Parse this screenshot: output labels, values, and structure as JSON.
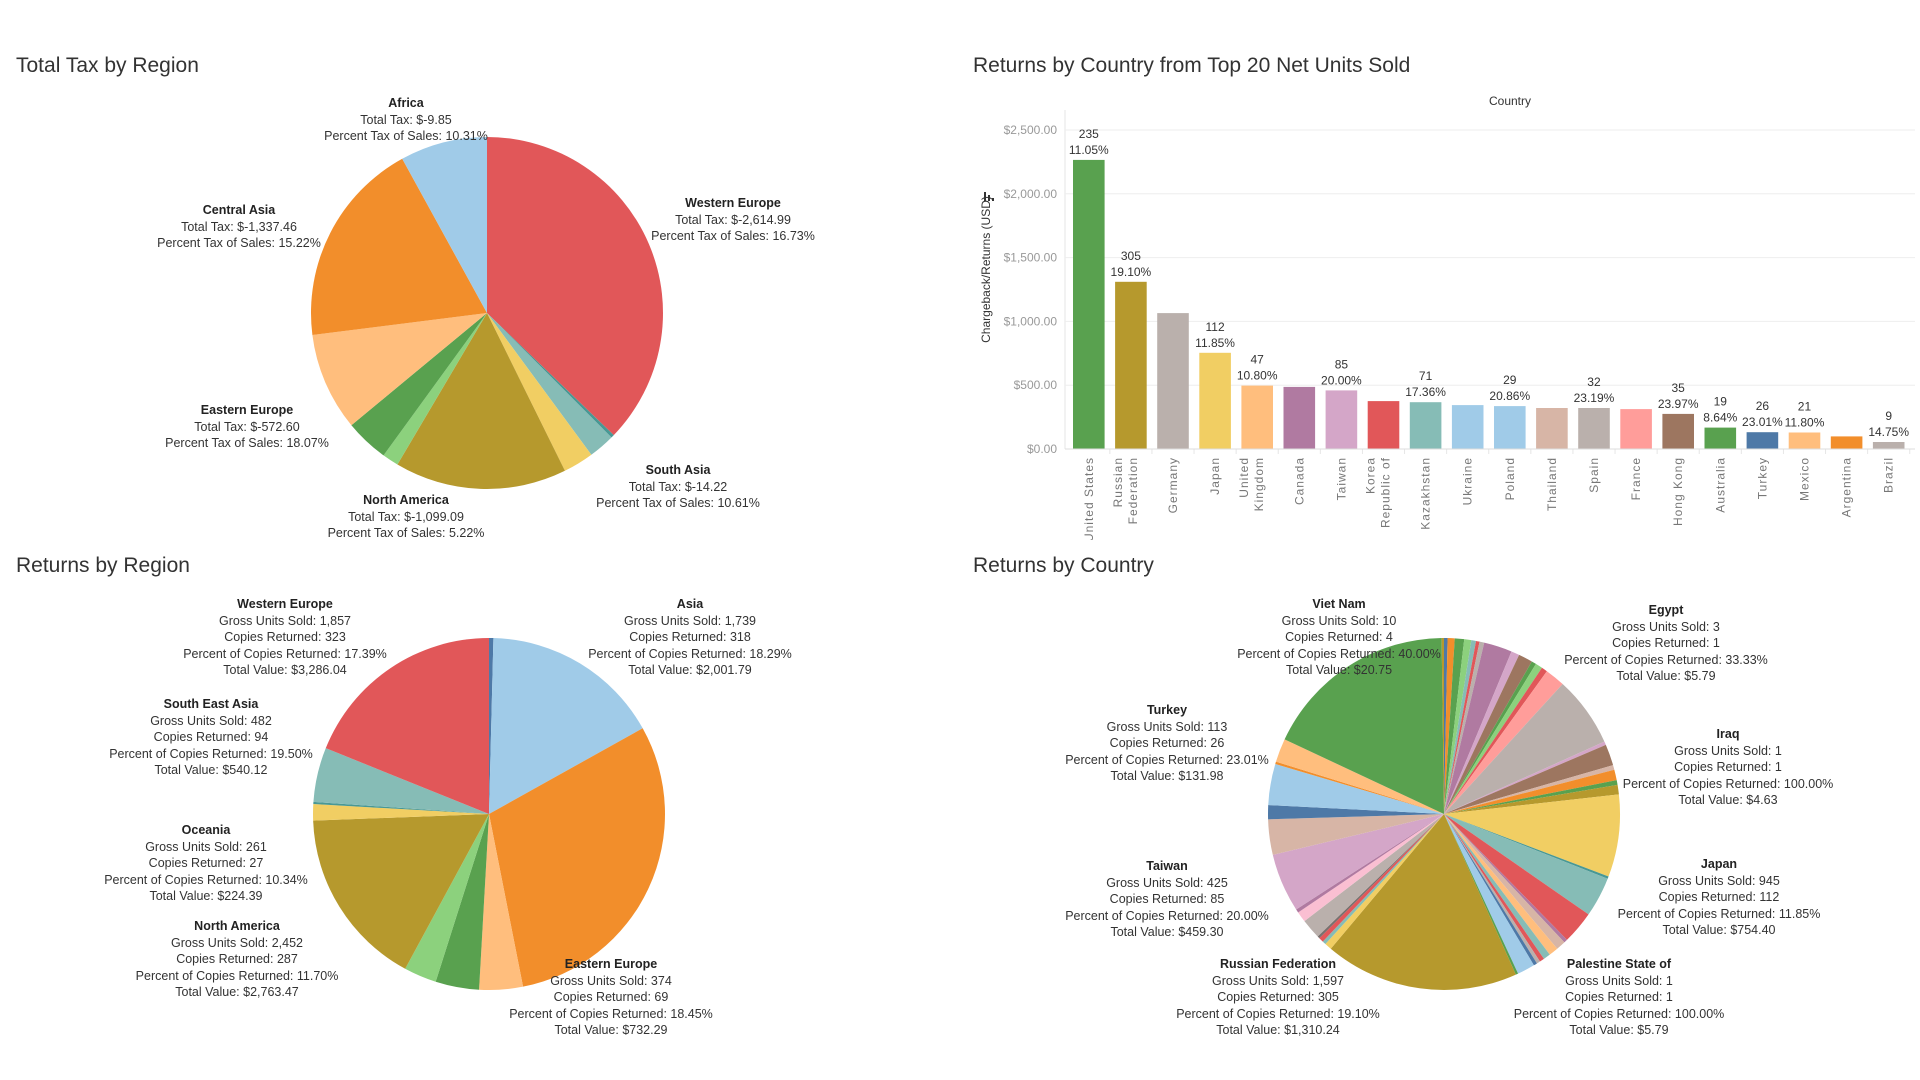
{
  "chart_data": [
    {
      "id": "tax",
      "type": "pie",
      "title": "Total Tax by Region",
      "slices": [
        {
          "label": "Western Europe",
          "share": 0.372,
          "color": "#e15759",
          "lines": [
            "Total Tax: $-2,614.99",
            "Percent Tax of Sales: 16.73%"
          ],
          "labeled": true
        },
        {
          "label": "(unlabeled)",
          "share": 0.003,
          "color": "#499894",
          "lines": [],
          "labeled": false
        },
        {
          "label": "(unlabeled)",
          "share": 0.024,
          "color": "#86bcb6",
          "lines": [],
          "labeled": false
        },
        {
          "label": "South Asia",
          "share": 0.028,
          "color": "#f1ce63",
          "lines": [
            "Total Tax: $-14.22",
            "Percent Tax of Sales: 10.61%"
          ],
          "labeled": true
        },
        {
          "label": "North America",
          "share": 0.158,
          "color": "#b6992d",
          "lines": [
            "Total Tax: $-1,099.09",
            "Percent Tax of Sales: 5.22%"
          ],
          "labeled": true
        },
        {
          "label": "(unlabeled)",
          "share": 0.015,
          "color": "#8cd17d",
          "lines": [],
          "labeled": false
        },
        {
          "label": "(unlabeled)",
          "share": 0.04,
          "color": "#59a14f",
          "lines": [],
          "labeled": false
        },
        {
          "label": "Eastern Europe",
          "share": 0.09,
          "color": "#ffbe7d",
          "lines": [
            "Total Tax: $-572.60",
            "Percent Tax of Sales: 18.07%"
          ],
          "labeled": true
        },
        {
          "label": "Central Asia",
          "share": 0.19,
          "color": "#f28e2b",
          "lines": [
            "Total Tax: $-1,337.46",
            "Percent Tax of Sales: 15.22%"
          ],
          "labeled": true
        },
        {
          "label": "Africa",
          "share": 0.08,
          "color": "#a0cbe8",
          "lines": [
            "Total Tax: $-9.85",
            "Percent Tax of Sales: 10.31%"
          ],
          "labeled": true
        }
      ]
    },
    {
      "id": "bars",
      "type": "bar",
      "title": "Returns by Country from Top 20 Net Units Sold",
      "header": "Country",
      "ylabel": "Chargeback/Returns (USD)",
      "ylim": [
        0,
        2500
      ],
      "yticks": [
        "$0.00",
        "$500.00",
        "$1,000.00",
        "$1,500.00",
        "$2,000.00",
        "$2,500.00"
      ],
      "ytick_values": [
        0,
        500,
        1000,
        1500,
        2000,
        2500
      ],
      "categories": [
        "United States",
        "Russian Federation",
        "Germany",
        "Japan",
        "United Kingdom",
        "Canada",
        "Taiwan",
        "Korea Republic of",
        "Kazakhstan",
        "Ukraine",
        "Poland",
        "Thailand",
        "Spain",
        "France",
        "Hong Kong",
        "Australia",
        "Turkey",
        "Mexico",
        "Argentina",
        "Brazil"
      ],
      "category_lines": [
        [
          "United States"
        ],
        [
          "Russian",
          "Federation"
        ],
        [
          "Germany"
        ],
        [
          "Japan"
        ],
        [
          "United",
          "Kingdom"
        ],
        [
          "Canada"
        ],
        [
          "Taiwan"
        ],
        [
          "Korea",
          "Republic of"
        ],
        [
          "Kazakhstan"
        ],
        [
          "Ukraine"
        ],
        [
          "Poland"
        ],
        [
          "Thailand"
        ],
        [
          "Spain"
        ],
        [
          "France"
        ],
        [
          "Hong Kong"
        ],
        [
          "Australia"
        ],
        [
          "Turkey"
        ],
        [
          "Mexico"
        ],
        [
          "Argentina"
        ],
        [
          "Brazil"
        ]
      ],
      "values": [
        2266,
        1310,
        1065,
        754,
        497,
        487,
        459,
        375,
        367,
        344,
        336,
        321,
        321,
        313,
        275,
        168,
        132,
        129,
        99,
        55
      ],
      "count_labels": [
        "235",
        "305",
        "",
        "112",
        "47",
        "",
        "85",
        "",
        "71",
        "",
        "29",
        "",
        "32",
        "",
        "35",
        "19",
        "26",
        "21",
        "",
        "9"
      ],
      "pct_labels": [
        "11.05%",
        "19.10%",
        "",
        "11.85%",
        "10.80%",
        "",
        "20.00%",
        "",
        "17.36%",
        "",
        "20.86%",
        "",
        "23.19%",
        "",
        "23.97%",
        "8.64%",
        "23.01%",
        "11.80%",
        "",
        "14.75%"
      ],
      "colors": [
        "#59a14f",
        "#b6992d",
        "#bab0ac",
        "#f1ce63",
        "#ffbe7d",
        "#b07aa1",
        "#d4a6c8",
        "#e15759",
        "#86bcb6",
        "#a0cbe8",
        "#a0cbe8",
        "#d7b5a6",
        "#bab0ac",
        "#ff9d9a",
        "#9d7660",
        "#59a14f",
        "#4e79a7",
        "#ffbe7d",
        "#f28e2b",
        "#bab0ac"
      ],
      "grid": true
    },
    {
      "id": "retregion",
      "type": "pie",
      "title": "Returns by Region",
      "slices": [
        {
          "label": "(unlabeled)",
          "share": 0.004,
          "color": "#4e79a7",
          "lines": [],
          "labeled": false
        },
        {
          "label": "Asia",
          "share": 0.165,
          "color": "#a0cbe8",
          "lines": [
            "Gross Units Sold: 1,739",
            "Copies Returned: 318",
            "Percent of Copies Returned: 18.29%",
            "Total Value: $2,001.79"
          ],
          "labeled": true
        },
        {
          "label": "Eastern Europe",
          "share": 0.3,
          "color": "#f28e2b",
          "lines": [
            "Gross Units Sold: 374",
            "Copies Returned: 69",
            "Percent of Copies Returned: 18.45%",
            "Total Value: $732.29"
          ],
          "labeled": true
        },
        {
          "label": "(unlabeled)",
          "share": 0.04,
          "color": "#ffbe7d",
          "lines": [],
          "labeled": false
        },
        {
          "label": "(unlabeled)",
          "share": 0.04,
          "color": "#59a14f",
          "lines": [],
          "labeled": false
        },
        {
          "label": "(unlabeled)",
          "share": 0.03,
          "color": "#8cd17d",
          "lines": [],
          "labeled": false
        },
        {
          "label": "North America",
          "share": 0.165,
          "color": "#b6992d",
          "lines": [
            "Gross Units Sold: 2,452",
            "Copies Returned: 287",
            "Percent of Copies Returned: 11.70%",
            "Total Value: $2,763.47"
          ],
          "labeled": true
        },
        {
          "label": "Oceania",
          "share": 0.015,
          "color": "#f1ce63",
          "lines": [
            "Gross Units Sold: 261",
            "Copies Returned: 27",
            "Percent of Copies Returned: 10.34%",
            "Total Value: $224.39"
          ],
          "labeled": true
        },
        {
          "label": "(unlabeled)",
          "share": 0.002,
          "color": "#499894",
          "lines": [],
          "labeled": false
        },
        {
          "label": "South East Asia",
          "share": 0.05,
          "color": "#86bcb6",
          "lines": [
            "Gross Units Sold: 482",
            "Copies Returned: 94",
            "Percent of Copies Returned: 19.50%",
            "Total Value: $540.12"
          ],
          "labeled": true
        },
        {
          "label": "Western Europe",
          "share": 0.189,
          "color": "#e15759",
          "lines": [
            "Gross Units Sold: 1,857",
            "Copies Returned: 323",
            "Percent of Copies Returned: 17.39%",
            "Total Value: $3,286.04"
          ],
          "labeled": true
        }
      ]
    },
    {
      "id": "retcountry",
      "type": "pie",
      "title": "Returns by Country",
      "slices": [
        {
          "label": "(unlabeled)",
          "share": 0.003,
          "color": "#4e79a7",
          "lines": [],
          "labeled": false
        },
        {
          "label": "(unlabeled)",
          "share": 0.006,
          "color": "#f28e2b",
          "lines": [],
          "labeled": false
        },
        {
          "label": "(unlabeled)",
          "share": 0.008,
          "color": "#59a14f",
          "lines": [],
          "labeled": false
        },
        {
          "label": "(unlabeled)",
          "share": 0.006,
          "color": "#8cd17d",
          "lines": [],
          "labeled": false
        },
        {
          "label": "(unlabeled)",
          "share": 0.004,
          "color": "#86bcb6",
          "lines": [],
          "labeled": false
        },
        {
          "label": "(unlabeled)",
          "share": 0.003,
          "color": "#e15759",
          "lines": [],
          "labeled": false
        },
        {
          "label": "(unlabeled)",
          "share": 0.004,
          "color": "#bab0ac",
          "lines": [],
          "labeled": false
        },
        {
          "label": "(unlabeled)",
          "share": 0.024,
          "color": "#b07aa1",
          "lines": [],
          "labeled": false
        },
        {
          "label": "(unlabeled)",
          "share": 0.007,
          "color": "#d4a6c8",
          "lines": [],
          "labeled": false
        },
        {
          "label": "(unlabeled)",
          "share": 0.012,
          "color": "#9d7660",
          "lines": [],
          "labeled": false
        },
        {
          "label": "(unlabeled)",
          "share": 0.004,
          "color": "#59a14f",
          "lines": [],
          "labeled": false
        },
        {
          "label": "Egypt",
          "share": 0.006,
          "color": "#8cd17d",
          "lines": [
            "Gross Units Sold: 3",
            "Copies Returned: 1",
            "Percent of Copies Returned: 33.33%",
            "Total Value: $5.79"
          ],
          "labeled": true
        },
        {
          "label": "(unlabeled)",
          "share": 0.005,
          "color": "#e15759",
          "lines": [],
          "labeled": false
        },
        {
          "label": "(unlabeled)",
          "share": 0.017,
          "color": "#ff9d9a",
          "lines": [],
          "labeled": false
        },
        {
          "label": "(unlabeled)",
          "share": 0.06,
          "color": "#bab0ac",
          "lines": [],
          "labeled": false
        },
        {
          "label": "(unlabeled)",
          "share": 0.003,
          "color": "#d4a6c8",
          "lines": [],
          "labeled": false
        },
        {
          "label": "(unlabeled)",
          "share": 0.018,
          "color": "#9d7660",
          "lines": [],
          "labeled": false
        },
        {
          "label": "Iraq",
          "share": 0.004,
          "color": "#d7b5a6",
          "lines": [
            "Gross Units Sold: 1",
            "Copies Returned: 1",
            "Percent of Copies Returned: 100.00%",
            "Total Value: $4.63"
          ],
          "labeled": true
        },
        {
          "label": "(unlabeled)",
          "share": 0.009,
          "color": "#f28e2b",
          "lines": [],
          "labeled": false
        },
        {
          "label": "(unlabeled)",
          "share": 0.004,
          "color": "#59a14f",
          "lines": [],
          "labeled": false
        },
        {
          "label": "(unlabeled)",
          "share": 0.008,
          "color": "#b6992d",
          "lines": [],
          "labeled": false
        },
        {
          "label": "Japan",
          "share": 0.07,
          "color": "#f1ce63",
          "lines": [
            "Gross Units Sold: 945",
            "Copies Returned: 112",
            "Percent of Copies Returned: 11.85%",
            "Total Value: $754.40"
          ],
          "labeled": true
        },
        {
          "label": "(unlabeled)",
          "share": 0.002,
          "color": "#499894",
          "lines": [],
          "labeled": false
        },
        {
          "label": "(unlabeled)",
          "share": 0.034,
          "color": "#86bcb6",
          "lines": [],
          "labeled": false
        },
        {
          "label": "(unlabeled)",
          "share": 0.028,
          "color": "#e15759",
          "lines": [],
          "labeled": false
        },
        {
          "label": "(unlabeled)",
          "share": 0.003,
          "color": "#b07aa1",
          "lines": [],
          "labeled": false
        },
        {
          "label": "(unlabeled)",
          "share": 0.008,
          "color": "#d7b5a6",
          "lines": [],
          "labeled": false
        },
        {
          "label": "(unlabeled)",
          "share": 0.008,
          "color": "#ffbe7d",
          "lines": [],
          "labeled": false
        },
        {
          "label": "Palestine State of",
          "share": 0.006,
          "color": "#86bcb6",
          "lines": [
            "Gross Units Sold: 1",
            "Copies Returned: 1",
            "Percent of Copies Returned: 100.00%",
            "Total Value: $5.79"
          ],
          "labeled": true
        },
        {
          "label": "(unlabeled)",
          "share": 0.004,
          "color": "#e15759",
          "lines": [],
          "labeled": false
        },
        {
          "label": "(unlabeled)",
          "share": 0.003,
          "color": "#bab0ac",
          "lines": [],
          "labeled": false
        },
        {
          "label": "(unlabeled)",
          "share": 0.003,
          "color": "#4e79a7",
          "lines": [],
          "labeled": false
        },
        {
          "label": "(unlabeled)",
          "share": 0.015,
          "color": "#a0cbe8",
          "lines": [],
          "labeled": false
        },
        {
          "label": "(unlabeled)",
          "share": 0.002,
          "color": "#59a14f",
          "lines": [],
          "labeled": false
        },
        {
          "label": "Russian Federation",
          "share": 0.165,
          "color": "#b6992d",
          "lines": [
            "Gross Units Sold: 1,597",
            "Copies Returned: 305",
            "Percent of Copies Returned: 19.10%",
            "Total Value: $1,310.24"
          ],
          "labeled": true
        },
        {
          "label": "(unlabeled)",
          "share": 0.006,
          "color": "#f1ce63",
          "lines": [],
          "labeled": false
        },
        {
          "label": "(unlabeled)",
          "share": 0.003,
          "color": "#86bcb6",
          "lines": [],
          "labeled": false
        },
        {
          "label": "(unlabeled)",
          "share": 0.004,
          "color": "#e15759",
          "lines": [],
          "labeled": false
        },
        {
          "label": "(unlabeled)",
          "share": 0.002,
          "color": "#79706e",
          "lines": [],
          "labeled": false
        },
        {
          "label": "(unlabeled)",
          "share": 0.017,
          "color": "#bab0ac",
          "lines": [],
          "labeled": false
        },
        {
          "label": "(unlabeled)",
          "share": 0.009,
          "color": "#fabfd2",
          "lines": [],
          "labeled": false
        },
        {
          "label": "(unlabeled)",
          "share": 0.003,
          "color": "#b07aa1",
          "lines": [],
          "labeled": false
        },
        {
          "label": "Taiwan",
          "share": 0.05,
          "color": "#d4a6c8",
          "lines": [
            "Gross Units Sold: 425",
            "Copies Returned: 85",
            "Percent of Copies Returned: 20.00%",
            "Total Value: $459.30"
          ],
          "labeled": true
        },
        {
          "label": "(unlabeled)",
          "share": 0.03,
          "color": "#d7b5a6",
          "lines": [],
          "labeled": false
        },
        {
          "label": "Turkey",
          "share": 0.012,
          "color": "#4e79a7",
          "lines": [
            "Gross Units Sold: 113",
            "Copies Returned: 26",
            "Percent of Copies Returned: 23.01%",
            "Total Value: $131.98"
          ],
          "labeled": true
        },
        {
          "label": "(unlabeled)",
          "share": 0.035,
          "color": "#a0cbe8",
          "lines": [],
          "labeled": false
        },
        {
          "label": "(unlabeled)",
          "share": 0.002,
          "color": "#f28e2b",
          "lines": [],
          "labeled": false
        },
        {
          "label": "(unlabeled)",
          "share": 0.02,
          "color": "#ffbe7d",
          "lines": [],
          "labeled": false
        },
        {
          "label": "Viet Nam",
          "share": 0.165,
          "color": "#59a14f",
          "lines": [
            "Gross Units Sold: 10",
            "Copies Returned: 4",
            "Percent of Copies Returned: 40.00%",
            "Total Value: $20.75"
          ],
          "labeled": true
        },
        {
          "label": "(unlabeled)",
          "share": 0.002,
          "color": "#b6992d",
          "lines": [],
          "labeled": false
        }
      ]
    }
  ]
}
